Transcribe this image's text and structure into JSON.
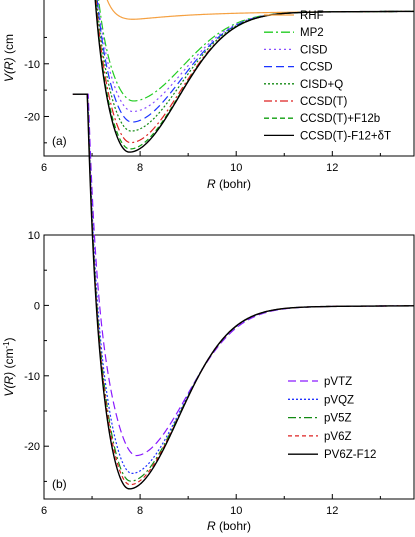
{
  "chart_data": [
    {
      "type": "line",
      "panel_label": "(a)",
      "xlabel_var": "R",
      "xlabel_unit": " (bohr)",
      "ylabel_var": "V(R)",
      "ylabel_unit": " (cm",
      "xlim": [
        6.0,
        13.7
      ],
      "ylim": [
        -27.5,
        4.0
      ],
      "xticks": [
        6,
        8,
        10,
        12
      ],
      "yticks": [
        -20,
        -10
      ],
      "grid": false,
      "legend_position": "right",
      "minimum_x": [
        7.95,
        7.9,
        7.88,
        7.85,
        7.82,
        7.8,
        7.77,
        7.75
      ],
      "series": [
        {
          "name": "RHF",
          "color": "#f5a040",
          "dash": "",
          "well_depth": 0
        },
        {
          "name": "MP2",
          "color": "#22cc22",
          "dash": "9,3,2,3",
          "well_depth": 15.5
        },
        {
          "name": "CISD",
          "color": "#8a4fff",
          "dash": "2,3",
          "well_depth": 17.5
        },
        {
          "name": "CCSD",
          "color": "#1a33ff",
          "dash": "8,4",
          "well_depth": 19.5
        },
        {
          "name": "CISD+Q",
          "color": "#138a13",
          "dash": "2,2",
          "well_depth": 21.2
        },
        {
          "name": "CCSD(T)",
          "color": "#dd2222",
          "dash": "8,3,2,3",
          "well_depth": 23.4
        },
        {
          "name": "CCSD(T)+F12b",
          "color": "#0f9f0f",
          "dash": "5,3",
          "well_depth": 24.6
        },
        {
          "name": "CCSD(T)-F12+δT",
          "color": "#000000",
          "dash": "",
          "well_depth": 25.2
        }
      ]
    },
    {
      "type": "line",
      "panel_label": "(b)",
      "xlabel_var": "R",
      "xlabel_unit": " (bohr)",
      "ylabel_var": "V(R)",
      "ylabel_unit": " (cm",
      "ylabel_sup": "-1",
      "ylabel_close": ")",
      "xlim": [
        6.0,
        13.7
      ],
      "ylim": [
        -27.5,
        10.0
      ],
      "xticks": [
        6,
        8,
        10,
        12
      ],
      "yticks": [
        -20,
        -10,
        0,
        10
      ],
      "grid": false,
      "legend_position": "bottom-right",
      "minimum_x": [
        8.0,
        7.85,
        7.8,
        7.78,
        7.75
      ],
      "series": [
        {
          "name": "pVTZ",
          "color": "#8a1aff",
          "dash": "8,4",
          "well_depth": 19.8
        },
        {
          "name": "pVQZ",
          "color": "#2233ff",
          "dash": "2,2",
          "well_depth": 22.3
        },
        {
          "name": "pV5Z",
          "color": "#138a13",
          "dash": "8,3,2,3",
          "well_depth": 23.4
        },
        {
          "name": "pV6Z",
          "color": "#dd2222",
          "dash": "4,3",
          "well_depth": 23.9
        },
        {
          "name": "PV6Z-F12",
          "color": "#000000",
          "dash": "",
          "well_depth": 24.5
        }
      ]
    }
  ]
}
